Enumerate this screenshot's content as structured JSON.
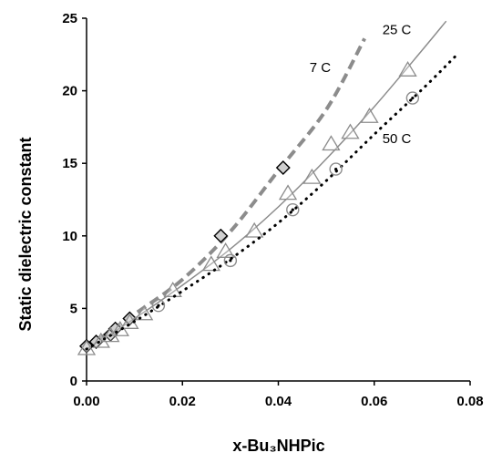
{
  "chart_data": {
    "type": "scatter",
    "xlabel": "x-Bu₃NHPic",
    "ylabel": "Static dielectric constant",
    "xlim": [
      0,
      0.08
    ],
    "ylim": [
      0,
      25
    ],
    "xticks": [
      "0.00",
      "0.02",
      "0.04",
      "0.06",
      "0.08"
    ],
    "yticks": [
      "0",
      "5",
      "10",
      "15",
      "20",
      "25"
    ],
    "grid": false,
    "legend": "none",
    "series": [
      {
        "name": "7 C",
        "marker": "diamond",
        "line_style": "dashed",
        "color": "#8c8c8c",
        "points": [
          [
            0.0,
            2.4
          ],
          [
            0.002,
            2.7
          ],
          [
            0.005,
            3.2
          ],
          [
            0.006,
            3.6
          ],
          [
            0.009,
            4.3
          ],
          [
            0.028,
            10.0
          ],
          [
            0.041,
            14.7
          ]
        ],
        "curve": [
          [
            0.0,
            2.3
          ],
          [
            0.01,
            4.6
          ],
          [
            0.02,
            7.0
          ],
          [
            0.03,
            10.3
          ],
          [
            0.04,
            14.5
          ],
          [
            0.05,
            18.7
          ],
          [
            0.058,
            23.6
          ]
        ]
      },
      {
        "name": "25 C",
        "marker": "triangle",
        "line_style": "solid",
        "color": "#8c8c8c",
        "points": [
          [
            0.0,
            2.2
          ],
          [
            0.003,
            2.7
          ],
          [
            0.005,
            3.1
          ],
          [
            0.007,
            3.5
          ],
          [
            0.009,
            4.0
          ],
          [
            0.012,
            4.6
          ],
          [
            0.018,
            6.2
          ],
          [
            0.026,
            8.0
          ],
          [
            0.029,
            8.9
          ],
          [
            0.035,
            10.3
          ],
          [
            0.042,
            12.9
          ],
          [
            0.047,
            14.0
          ],
          [
            0.051,
            16.3
          ],
          [
            0.055,
            17.1
          ],
          [
            0.059,
            18.2
          ],
          [
            0.067,
            21.4
          ]
        ],
        "curve": [
          [
            0.0,
            2.2
          ],
          [
            0.01,
            4.3
          ],
          [
            0.02,
            6.6
          ],
          [
            0.03,
            9.1
          ],
          [
            0.04,
            12.0
          ],
          [
            0.05,
            15.3
          ],
          [
            0.06,
            18.9
          ],
          [
            0.07,
            22.8
          ],
          [
            0.075,
            24.8
          ]
        ]
      },
      {
        "name": "50 C",
        "marker": "circle-dot",
        "line_style": "dotted",
        "color": "#000000",
        "points": [
          [
            0.015,
            5.2
          ],
          [
            0.03,
            8.3
          ],
          [
            0.043,
            11.8
          ],
          [
            0.052,
            14.6
          ],
          [
            0.068,
            19.5
          ]
        ],
        "curve": [
          [
            0.0,
            2.2
          ],
          [
            0.01,
            4.1
          ],
          [
            0.02,
            6.2
          ],
          [
            0.03,
            8.4
          ],
          [
            0.04,
            10.9
          ],
          [
            0.05,
            13.8
          ],
          [
            0.06,
            17.0
          ],
          [
            0.07,
            20.1
          ],
          [
            0.077,
            22.4
          ]
        ]
      }
    ]
  }
}
